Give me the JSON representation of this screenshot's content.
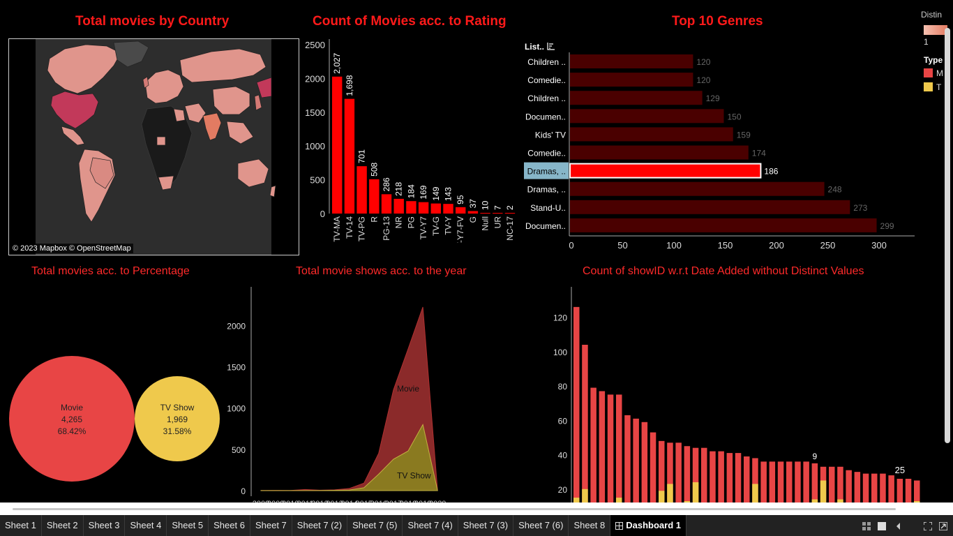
{
  "titles": {
    "country": "Total movies by Country",
    "rating": "Count of Movies acc. to Rating",
    "genres": "Top 10 Genres",
    "percentage": "Total movies acc. to Percentage",
    "year": "Total movie shows acc. to the year",
    "date_added": "Count of showID w.r.t Date Added without Distinct Values"
  },
  "map": {
    "attribution": "© 2023 Mapbox © OpenStreetMap"
  },
  "legend": {
    "distinct_title": "Distin",
    "distinct_min": "1",
    "type_title": "Type",
    "type_items": [
      "M",
      "T"
    ],
    "colors": {
      "movie": "#e84545",
      "tvshow": "#efc94c"
    }
  },
  "genres_header": "List..",
  "chart_data": [
    {
      "type": "bar",
      "title": "Count of Movies acc. to Rating",
      "categories": [
        "TV-MA",
        "TV-14",
        "TV-PG",
        "R",
        "PG-13",
        "NR",
        "PG",
        "TV-Y7",
        "TV-G",
        "TV-Y",
        "TV-Y7-FV",
        "G",
        "Null",
        "UR",
        "NC-17"
      ],
      "values": [
        2027,
        1698,
        701,
        508,
        286,
        218,
        184,
        169,
        149,
        143,
        95,
        37,
        10,
        7,
        2
      ],
      "value_labels": [
        "2,027",
        "1,698",
        "701",
        "508",
        "286",
        "218",
        "184",
        "169",
        "149",
        "143",
        "95",
        "37",
        "10",
        "7",
        "2"
      ],
      "yticks": [
        "0",
        "500",
        "1000",
        "1500",
        "2000",
        "2500"
      ],
      "ylim": [
        0,
        2500
      ],
      "color": "#ff0000"
    },
    {
      "type": "bar",
      "title": "Top 10 Genres",
      "orientation": "horizontal",
      "categories": [
        "Children ..",
        "Comedie..",
        "Children ..",
        "Documen..",
        "Kids' TV",
        "Comedie..",
        "Dramas, ..",
        "Dramas, ..",
        "Stand-U..",
        "Documen.."
      ],
      "values": [
        120,
        120,
        129,
        150,
        159,
        174,
        186,
        248,
        273,
        299
      ],
      "highlighted": "Dramas, ..",
      "xticks": [
        "0",
        "50",
        "100",
        "150",
        "200",
        "250",
        "300"
      ],
      "xlim": [
        0,
        300
      ]
    },
    {
      "type": "pie",
      "title": "Total movies acc. to Percentage",
      "slices": [
        {
          "name": "Movie",
          "value": "4,265",
          "percent": "68.42%"
        },
        {
          "name": "TV Show",
          "value": "1,969",
          "percent": "31.58%"
        }
      ]
    },
    {
      "type": "area",
      "title": "Total movie shows acc. to the year",
      "x": [
        2008,
        2009,
        2010,
        2011,
        2012,
        2013,
        2014,
        2015,
        2016,
        2017,
        2018,
        2019,
        2020
      ],
      "xtick_labels": [
        "2008",
        "2009",
        "2010",
        "2011",
        "2012",
        "2013",
        "2014",
        "2015",
        "2016",
        "2017",
        "2018",
        "2019",
        "2020"
      ],
      "series": [
        {
          "name": "Movie",
          "values": [
            1,
            2,
            1,
            13,
            3,
            6,
            19,
            56,
            253,
            839,
            1237,
            1424,
            0
          ]
        },
        {
          "name": "TV Show",
          "values": [
            1,
            1,
            1,
            1,
            2,
            4,
            7,
            35,
            200,
            380,
            480,
            800,
            0
          ]
        }
      ],
      "yticks": [
        "0",
        "500",
        "1000",
        "1500",
        "2000"
      ],
      "ylim": [
        0,
        2350
      ]
    },
    {
      "type": "bar",
      "title": "Count of showID w.r.t Date Added without Distinct Values",
      "series": [
        {
          "name": "Movie",
          "values": [
            126,
            104,
            79,
            77,
            75,
            75,
            63,
            61,
            59,
            53,
            48,
            47,
            47,
            45,
            44,
            44,
            42,
            42,
            41,
            41,
            39,
            38,
            36,
            36,
            36,
            36,
            36,
            36,
            35,
            33,
            33,
            33,
            31,
            30,
            29,
            29,
            29,
            28,
            26,
            26,
            25
          ]
        },
        {
          "name": "TV Show",
          "values": [
            15,
            20,
            0,
            0,
            0,
            15,
            0,
            0,
            0,
            0,
            19,
            23,
            0,
            13,
            24,
            0,
            0,
            0,
            0,
            0,
            0,
            23,
            0,
            0,
            0,
            0,
            0,
            0,
            14,
            25,
            0,
            14,
            0,
            0,
            0,
            0,
            0,
            0,
            0,
            0,
            13
          ]
        }
      ],
      "yticks": [
        "20",
        "40",
        "60",
        "80",
        "100",
        "120"
      ],
      "ylim": [
        10,
        130
      ],
      "annotations": [
        "9",
        "25"
      ]
    }
  ],
  "tabs": [
    "Sheet 1",
    "Sheet 2",
    "Sheet 3",
    "Sheet 4",
    "Sheet 5",
    "Sheet 6",
    "Sheet 7",
    "Sheet 7 (2)",
    "Sheet 7 (5)",
    "Sheet 7 (4)",
    "Sheet 7 (3)",
    "Sheet 7 (6)",
    "Sheet 8",
    "Dashboard 1"
  ],
  "active_tab": "Dashboard 1"
}
